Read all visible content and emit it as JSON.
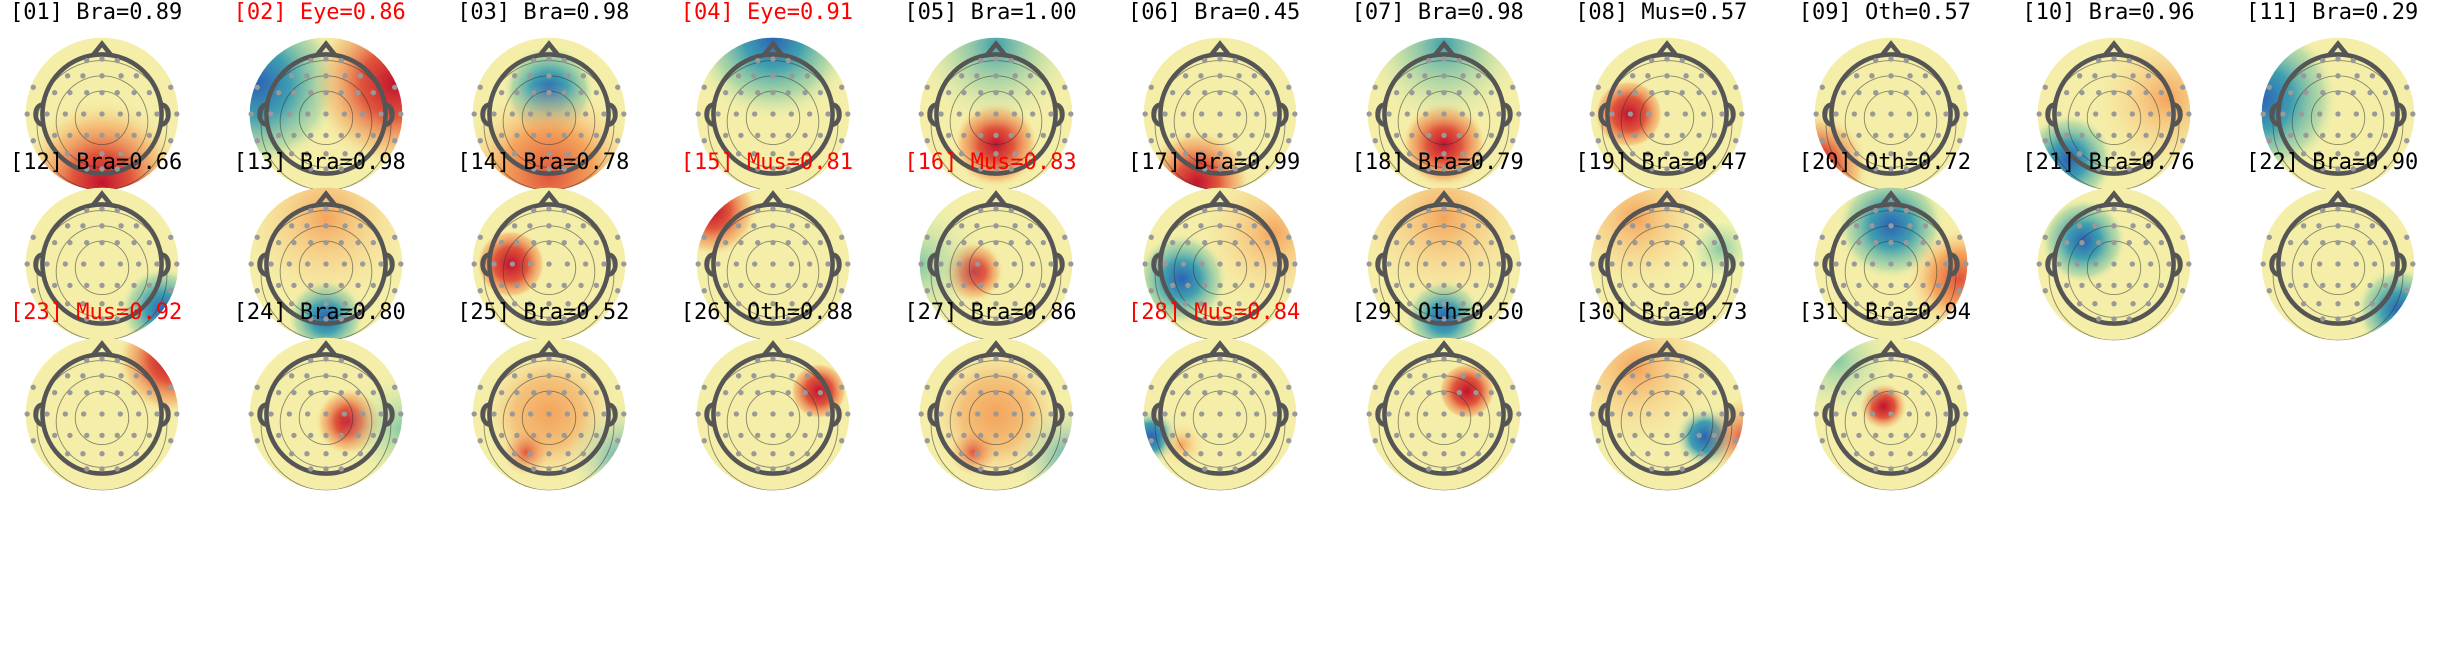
{
  "figure": {
    "colors": {
      "text": "#000000",
      "flagged_text": "#ff0000",
      "colormap": [
        "#2b64b5",
        "#3f9fb0",
        "#85c9a3",
        "#eef5b0",
        "#fbe7a0",
        "#f4a45c",
        "#e0553b",
        "#c2132f"
      ],
      "head_outline": "#555555",
      "electrode": "#999999"
    }
  },
  "components": [
    {
      "index": "[01]",
      "label": "Bra=0.89",
      "flagged": false,
      "pattern": {
        "type": "posterior-red"
      }
    },
    {
      "index": "[02]",
      "label": "Eye=0.86",
      "flagged": true,
      "pattern": {
        "type": "lateral",
        "a": "blue-left",
        "b": "red-right"
      }
    },
    {
      "index": "[03]",
      "label": "Bra=0.98",
      "flagged": false,
      "pattern": {
        "type": "central-blue"
      }
    },
    {
      "index": "[04]",
      "label": "Eye=0.91",
      "flagged": true,
      "pattern": {
        "type": "frontal-band"
      }
    },
    {
      "index": "[05]",
      "label": "Bra=1.00",
      "flagged": false,
      "pattern": {
        "type": "posterior-focal-red"
      }
    },
    {
      "index": "[06]",
      "label": "Bra=0.45",
      "flagged": false,
      "pattern": {
        "type": "posterior-red-small"
      }
    },
    {
      "index": "[07]",
      "label": "Bra=0.98",
      "flagged": false,
      "pattern": {
        "type": "posterior-focal-red"
      }
    },
    {
      "index": "[08]",
      "label": "Mus=0.57",
      "flagged": false,
      "pattern": {
        "type": "left-focal-red"
      }
    },
    {
      "index": "[09]",
      "label": "Oth=0.57",
      "flagged": false,
      "pattern": {
        "type": "left-edge-red"
      }
    },
    {
      "index": "[10]",
      "label": "Bra=0.96",
      "flagged": false,
      "pattern": {
        "type": "left-blue"
      }
    },
    {
      "index": "[11]",
      "label": "Bra=0.29",
      "flagged": false,
      "pattern": {
        "type": "left-blue-diffuse"
      }
    },
    {
      "index": "[12]",
      "label": "Bra=0.66",
      "flagged": false,
      "pattern": {
        "type": "right-blue-low"
      }
    },
    {
      "index": "[13]",
      "label": "Bra=0.98",
      "flagged": false,
      "pattern": {
        "type": "posterior-blue"
      }
    },
    {
      "index": "[14]",
      "label": "Bra=0.78",
      "flagged": false,
      "pattern": {
        "type": "left-focal-red"
      }
    },
    {
      "index": "[15]",
      "label": "Mus=0.81",
      "flagged": true,
      "pattern": {
        "type": "upper-left-red"
      }
    },
    {
      "index": "[16]",
      "label": "Mus=0.83",
      "flagged": true,
      "pattern": {
        "type": "left-center-red"
      }
    },
    {
      "index": "[17]",
      "label": "Bra=0.99",
      "flagged": false,
      "pattern": {
        "type": "left-blue-center"
      }
    },
    {
      "index": "[18]",
      "label": "Bra=0.79",
      "flagged": false,
      "pattern": {
        "type": "posterior-blue"
      }
    },
    {
      "index": "[19]",
      "label": "Bra=0.47",
      "flagged": false,
      "pattern": {
        "type": "right-green"
      }
    },
    {
      "index": "[20]",
      "label": "Oth=0.72",
      "flagged": false,
      "pattern": {
        "type": "frontal-blue"
      }
    },
    {
      "index": "[21]",
      "label": "Bra=0.76",
      "flagged": false,
      "pattern": {
        "type": "left-blue-upper"
      }
    },
    {
      "index": "[22]",
      "label": "Bra=0.90",
      "flagged": false,
      "pattern": {
        "type": "right-blue-low"
      }
    },
    {
      "index": "[23]",
      "label": "Mus=0.92",
      "flagged": true,
      "pattern": {
        "type": "upper-right-red"
      }
    },
    {
      "index": "[24]",
      "label": "Bra=0.80",
      "flagged": false,
      "pattern": {
        "type": "right-center-red"
      }
    },
    {
      "index": "[25]",
      "label": "Bra=0.52",
      "flagged": false,
      "pattern": {
        "type": "central-orange"
      }
    },
    {
      "index": "[26]",
      "label": "Oth=0.88",
      "flagged": false,
      "pattern": {
        "type": "right-focal-red"
      }
    },
    {
      "index": "[27]",
      "label": "Bra=0.86",
      "flagged": false,
      "pattern": {
        "type": "central-orange"
      }
    },
    {
      "index": "[28]",
      "label": "Mus=0.84",
      "flagged": true,
      "pattern": {
        "type": "left-edge-blue"
      }
    },
    {
      "index": "[29]",
      "label": "Oth=0.50",
      "flagged": false,
      "pattern": {
        "type": "upper-right-focal"
      }
    },
    {
      "index": "[30]",
      "label": "Bra=0.73",
      "flagged": false,
      "pattern": {
        "type": "right-blue-center"
      }
    },
    {
      "index": "[31]",
      "label": "Bra=0.94",
      "flagged": false,
      "pattern": {
        "type": "center-red-small"
      }
    }
  ]
}
